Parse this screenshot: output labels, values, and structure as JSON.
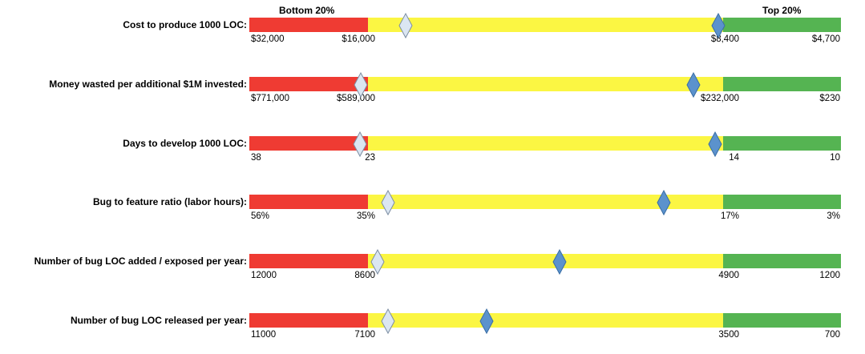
{
  "colors": {
    "bottom": "#ef3b33",
    "middle": "#fbf643",
    "top": "#55b452",
    "marker_light_fill": "#dbe6f2",
    "marker_light_stroke": "#7d8ea3",
    "marker_dark_fill": "#5b92cd",
    "marker_dark_stroke": "#3a6ea5"
  },
  "chart_data": {
    "type": "bullet",
    "band_labels": {
      "bottom": "Bottom 20%",
      "top": "Top 20%"
    },
    "rows": [
      {
        "label": "Cost to produce 1000 LOC:",
        "ticks": [
          "$32,000",
          "$16,000",
          "$8,400",
          "$4,700"
        ],
        "bands": [
          32000,
          16000,
          8400,
          4700
        ],
        "marker_light": 15200,
        "marker_dark": 8500
      },
      {
        "label": "Money wasted per additional $1M invested:",
        "ticks": [
          "$771,000",
          "$589,000",
          "$232,000",
          "$230"
        ],
        "bands": [
          771000,
          589000,
          232000,
          230
        ],
        "marker_light": 600000,
        "marker_dark": 262000
      },
      {
        "label": "Days to develop 1000 LOC:",
        "ticks": [
          "38",
          "23",
          "14",
          "10"
        ],
        "bands": [
          38,
          23,
          14,
          10
        ],
        "marker_light": 24,
        "marker_dark": 14.2
      },
      {
        "label": "Bug to feature ratio (labor hours):",
        "ticks": [
          "56%",
          "35%",
          "17%",
          "3%"
        ],
        "bands": [
          56,
          35,
          17,
          3
        ],
        "marker_light": 34,
        "marker_dark": 20
      },
      {
        "label": "Number of bug LOC added / exposed per year:",
        "ticks": [
          "12000",
          "8600",
          "4900",
          "1200"
        ],
        "bands": [
          12000,
          8600,
          4900,
          1200
        ],
        "marker_light": 8500,
        "marker_dark": 6600
      },
      {
        "label": "Number of bug LOC released per year:",
        "ticks": [
          "11000",
          "7100",
          "3500",
          "700"
        ],
        "bands": [
          11000,
          7100,
          3500,
          700
        ],
        "marker_light": 6900,
        "marker_dark": 5900
      }
    ]
  }
}
